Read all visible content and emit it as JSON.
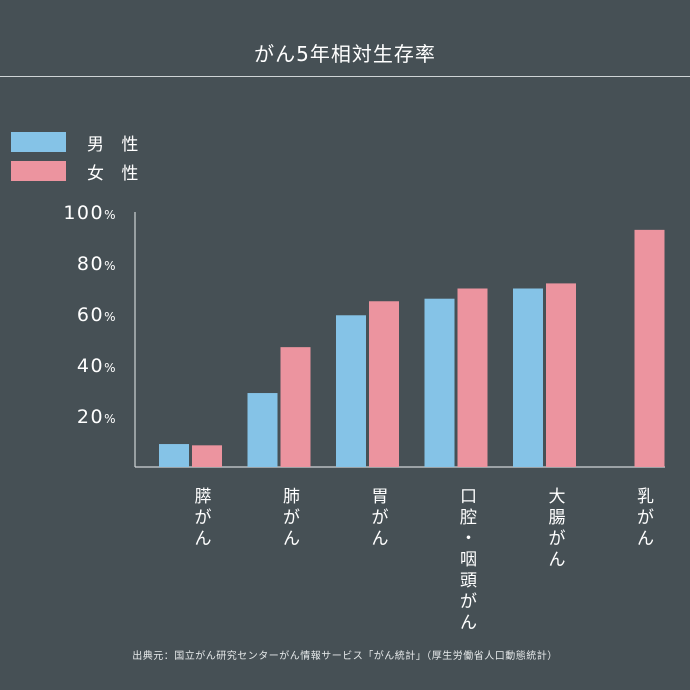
{
  "title": "がん5年相対生存率",
  "legend": [
    {
      "label": "男 性",
      "color": "#85c3e7"
    },
    {
      "label": "女 性",
      "color": "#ec949f"
    }
  ],
  "chart_data": {
    "type": "bar",
    "title": "がん5年相対生存率",
    "categories": [
      "膵がん",
      "肺がん",
      "胃がん",
      "口腔・咽頭がん",
      "大腸がん",
      "乳がん"
    ],
    "category_labels": [
      "膵\nが\nん",
      "肺\nが\nん",
      "胃\nが\nん",
      "口\n腔\n・\n咽\n頭\nが\nん",
      "大\n腸\nが\nん",
      "乳\nが\nん"
    ],
    "series": [
      {
        "name": "男性",
        "color": "#85c3e7",
        "values": [
          9,
          29,
          59.5,
          66,
          70,
          null
        ]
      },
      {
        "name": "女性",
        "color": "#ec949f",
        "values": [
          8.5,
          47,
          65,
          70,
          72,
          93
        ]
      }
    ],
    "yticks": [
      20,
      40,
      60,
      80,
      100
    ],
    "ytick_labels": [
      "20%",
      "40%",
      "60%",
      "80%",
      "100%"
    ],
    "ylim": [
      0,
      100
    ],
    "xlabel": "",
    "ylabel": ""
  },
  "source": "出典元：国立がん研究センターがん情報サービス「がん統計」（厚生労働省人口動態統計）"
}
